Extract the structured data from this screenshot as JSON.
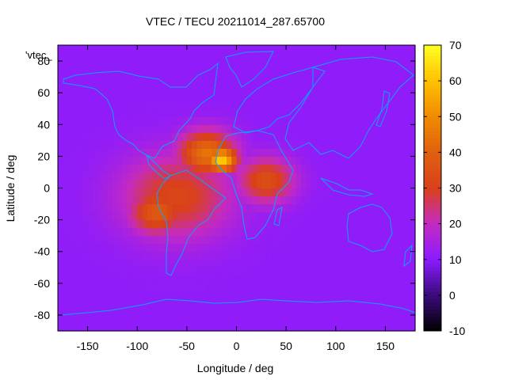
{
  "chart_data": {
    "type": "heatmap",
    "title": "VTEC / TECU 20211014_287.65700",
    "xlabel": "Longitude / deg",
    "ylabel": "Latitude / deg",
    "series_label": "'vtec_",
    "xlim": [
      -180,
      180
    ],
    "ylim": [
      -90,
      90
    ],
    "x_ticks": [
      -150,
      -100,
      -50,
      0,
      50,
      100,
      150
    ],
    "y_ticks": [
      -80,
      -60,
      -40,
      -20,
      0,
      20,
      40,
      60,
      80
    ],
    "colorbar": {
      "range": [
        -10,
        70
      ],
      "ticks": [
        -10,
        0,
        10,
        20,
        30,
        40,
        50,
        60,
        70
      ],
      "stops": [
        {
          "value": -10,
          "color": "#000000"
        },
        {
          "value": 0,
          "color": "#3a0a7a"
        },
        {
          "value": 10,
          "color": "#8a1bff"
        },
        {
          "value": 20,
          "color": "#c42ac2"
        },
        {
          "value": 30,
          "color": "#d9401a"
        },
        {
          "value": 40,
          "color": "#e06010"
        },
        {
          "value": 50,
          "color": "#f08a00"
        },
        {
          "value": 60,
          "color": "#ffc000"
        },
        {
          "value": 70,
          "color": "#ffff20"
        }
      ]
    },
    "features": [
      {
        "name": "equatorial-anomaly",
        "lon": -60,
        "lat": -5,
        "value": 32
      },
      {
        "name": "peak",
        "lon": -15,
        "lat": 18,
        "value": 62
      },
      {
        "name": "northern-crest",
        "lon": -30,
        "lat": 22,
        "value": 45
      },
      {
        "name": "africa-tongue",
        "lon": 30,
        "lat": 5,
        "value": 35
      },
      {
        "name": "southern-crest",
        "lon": -80,
        "lat": -15,
        "value": 38
      }
    ],
    "background_value": 11,
    "coastline_color": "#0aa3ff"
  }
}
